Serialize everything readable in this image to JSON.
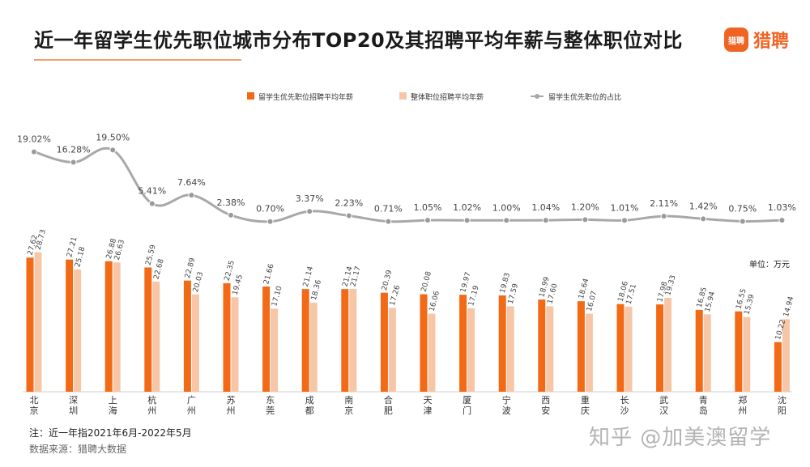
{
  "title": "近一年留学生优先职位城市分布TOP20及其招聘平均年薪与整体职位对比",
  "logo": {
    "icon_text": "猎聘",
    "text": "猎聘",
    "color": "#f06423"
  },
  "unit": "单位：万元",
  "note": "注：近一年指2021年6月-2022年5月",
  "source": "数据来源：猎聘大数据",
  "watermark": "知乎 @加美澳留学",
  "colors": {
    "series1": "#f26a16",
    "series2": "#f6c6a6",
    "line": "#a8a8a8"
  },
  "chart_data": {
    "type": "bar",
    "categories": [
      "北京",
      "深圳",
      "上海",
      "杭州",
      "广州",
      "苏州",
      "东莞",
      "成都",
      "南京",
      "合肥",
      "天津",
      "厦门",
      "宁波",
      "西安",
      "重庆",
      "长沙",
      "武汉",
      "青岛",
      "郑州",
      "沈阳"
    ],
    "legend": [
      "留学生优先职位招聘平均年薪",
      "整体职位招聘平均年薪",
      "留学生优先职位的占比"
    ],
    "series": [
      {
        "name": "留学生优先职位招聘平均年薪",
        "type": "bar",
        "values": [
          27.62,
          27.21,
          26.88,
          25.59,
          22.89,
          22.35,
          21.66,
          21.14,
          21.14,
          20.39,
          20.08,
          19.97,
          19.83,
          18.99,
          18.64,
          18.06,
          17.98,
          16.85,
          16.55,
          10.22
        ],
        "labels": [
          "27.62",
          "27.21",
          "26.88",
          "25.59",
          "22.89",
          "22.35",
          "21.66",
          "21.14",
          "21.14",
          "20.39",
          "20.08",
          "19.97",
          "19.83",
          "18.99",
          "18.64",
          "18.06",
          "17.98",
          "16.85",
          "16.55",
          "10.22"
        ]
      },
      {
        "name": "整体职位招聘平均年薪",
        "type": "bar",
        "values": [
          28.73,
          25.18,
          26.63,
          22.68,
          20.03,
          19.45,
          17.1,
          18.36,
          21.17,
          17.26,
          16.06,
          17.19,
          17.59,
          17.6,
          16.07,
          17.51,
          19.33,
          15.94,
          15.39,
          14.94
        ],
        "labels": [
          "28.73",
          "25.18",
          "26.63",
          "22.68",
          "20.03",
          "19.45",
          "17.10",
          "18.36",
          "21.17",
          "17.26",
          "16.06",
          "17.19",
          "17.59",
          "17.60",
          "16.07",
          "17.51",
          "19.33",
          "15.94",
          "15.39",
          "14.94"
        ]
      },
      {
        "name": "留学生优先职位的占比",
        "type": "line",
        "values": [
          19.02,
          16.28,
          19.5,
          5.41,
          7.64,
          2.38,
          0.7,
          3.37,
          2.23,
          0.71,
          1.05,
          1.02,
          1.0,
          1.04,
          1.2,
          1.01,
          2.11,
          1.42,
          0.75,
          1.03
        ],
        "labels": [
          "19.02%",
          "16.28%",
          "19.50%",
          "5.41%",
          "7.64%",
          "2.38%",
          "0.70%",
          "3.37%",
          "2.23%",
          "0.71%",
          "1.05%",
          "1.02%",
          "1.00%",
          "1.04%",
          "1.20%",
          "1.01%",
          "2.11%",
          "1.42%",
          "0.75%",
          "1.03%"
        ]
      }
    ]
  }
}
